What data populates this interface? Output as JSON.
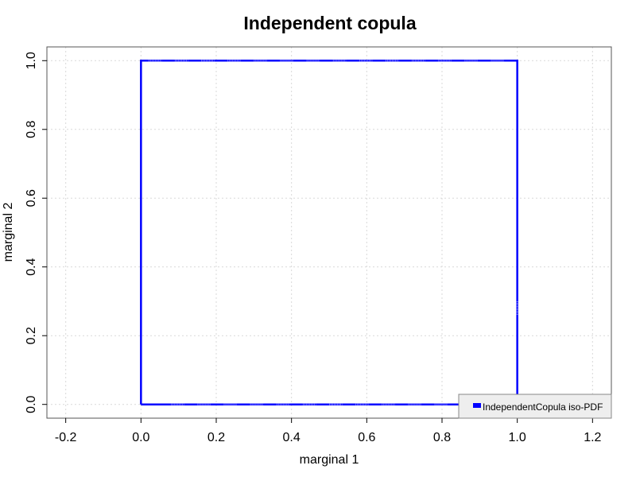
{
  "chart_data": {
    "type": "line",
    "title": "Independent copula",
    "xlabel": "marginal 1",
    "ylabel": "marginal 2",
    "xlim": [
      -0.25,
      1.25
    ],
    "ylim": [
      -0.04,
      1.04
    ],
    "x_ticks": [
      "-0.2",
      "0.0",
      "0.2",
      "0.4",
      "0.6",
      "0.8",
      "1.0",
      "1.2"
    ],
    "x_tick_values": [
      -0.2,
      0.0,
      0.2,
      0.4,
      0.6,
      0.8,
      1.0,
      1.2
    ],
    "y_ticks": [
      "0.0",
      "0.2",
      "0.4",
      "0.6",
      "0.8",
      "1.0"
    ],
    "y_tick_values": [
      0.0,
      0.2,
      0.4,
      0.6,
      0.8,
      1.0
    ],
    "grid": true,
    "legend_position": "bottom-right",
    "series": [
      {
        "name": "IndependentCopula iso-PDF",
        "color": "#0000ff",
        "x": [
          0.0,
          1.0,
          1.0,
          0.0,
          0.0
        ],
        "y": [
          0.0,
          0.0,
          1.0,
          1.0,
          0.0
        ]
      }
    ]
  }
}
